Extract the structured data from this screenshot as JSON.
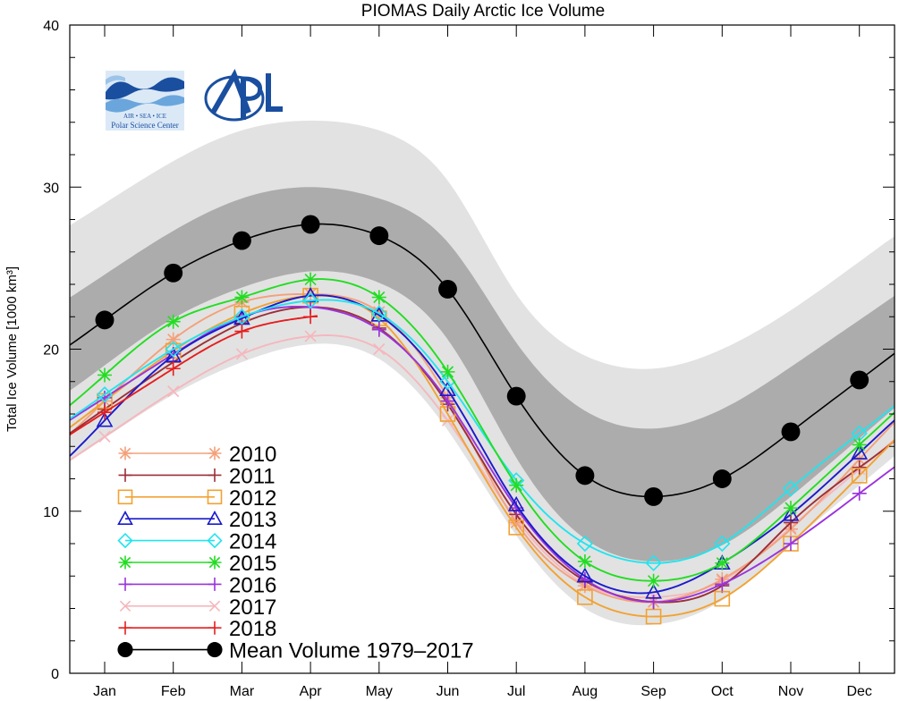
{
  "chart_data": {
    "type": "line",
    "title": "PIOMAS Daily Arctic Ice Volume",
    "xlabel": "",
    "ylabel": "Total Ice Volume [1000 km³]",
    "ylim": [
      0,
      40
    ],
    "yticks": [
      0,
      10,
      20,
      30,
      40
    ],
    "categories": [
      "Jan",
      "Feb",
      "Mar",
      "Apr",
      "May",
      "Jun",
      "Jul",
      "Aug",
      "Sep",
      "Oct",
      "Nov",
      "Dec"
    ],
    "x": [
      0,
      1,
      2,
      3,
      4,
      5,
      6,
      7,
      8,
      9,
      10,
      11
    ],
    "bands": {
      "outer": {
        "upper": [
          29.0,
          31.6,
          33.5,
          34.1,
          33.5,
          30.4,
          23.4,
          19.6,
          18.8,
          20.0,
          22.4,
          25.4
        ],
        "lower": [
          14.5,
          17.2,
          19.2,
          20.3,
          19.4,
          15.0,
          8.5,
          4.0,
          3.0,
          4.5,
          8.0,
          11.6
        ]
      },
      "inner": {
        "upper": [
          24.6,
          27.3,
          29.3,
          30.0,
          29.3,
          26.6,
          20.4,
          16.2,
          15.1,
          16.3,
          18.9,
          21.8
        ],
        "lower": [
          19.0,
          21.9,
          23.8,
          24.8,
          24.1,
          20.6,
          13.3,
          8.3,
          6.9,
          7.9,
          10.9,
          14.5
        ]
      }
    },
    "series": [
      {
        "name": "2010",
        "color": "#f4a07a",
        "marker": "asterisk",
        "values": [
          16.8,
          20.6,
          22.9,
          23.4,
          22.3,
          17.0,
          9.3,
          5.4,
          4.4,
          5.8,
          8.9,
          13.2
        ]
      },
      {
        "name": "2011",
        "color": "#9c2f38",
        "marker": "plus",
        "values": [
          16.3,
          19.2,
          21.6,
          22.6,
          21.3,
          16.6,
          9.8,
          5.7,
          4.4,
          5.4,
          9.3,
          12.7
        ]
      },
      {
        "name": "2012",
        "color": "#f2a233",
        "marker": "square",
        "values": [
          16.8,
          19.9,
          22.2,
          23.3,
          21.9,
          16.0,
          9.0,
          4.7,
          3.5,
          4.6,
          8.0,
          12.2
        ]
      },
      {
        "name": "2013",
        "color": "#1a1acc",
        "marker": "triangle",
        "values": [
          15.6,
          19.6,
          21.9,
          23.3,
          22.1,
          17.5,
          10.4,
          6.0,
          5.0,
          6.8,
          9.8,
          13.6
        ]
      },
      {
        "name": "2014",
        "color": "#22e4ee",
        "marker": "diamond",
        "values": [
          17.2,
          20.0,
          22.0,
          23.0,
          22.2,
          18.0,
          11.9,
          8.0,
          6.8,
          8.0,
          11.4,
          14.8
        ]
      },
      {
        "name": "2015",
        "color": "#22dd22",
        "marker": "asterisk",
        "values": [
          18.4,
          21.7,
          23.2,
          24.3,
          23.2,
          18.6,
          11.6,
          6.9,
          5.7,
          6.8,
          10.2,
          14.1
        ]
      },
      {
        "name": "2016",
        "color": "#9a33dd",
        "marker": "plus",
        "values": [
          17.0,
          19.7,
          22.0,
          22.6,
          21.2,
          16.8,
          10.2,
          5.8,
          4.4,
          5.5,
          8.0,
          11.1
        ]
      },
      {
        "name": "2017",
        "color": "#f5b7bd",
        "marker": "x",
        "values": [
          14.6,
          17.4,
          19.7,
          20.8,
          20.0,
          15.6,
          9.5,
          5.5,
          4.7,
          5.7,
          9.0,
          12.6
        ]
      },
      {
        "name": "2018",
        "color": "#e61e1e",
        "marker": "plus",
        "values": [
          16.1,
          18.8,
          21.1,
          22.0,
          null,
          null,
          null,
          null,
          null,
          null,
          null,
          null
        ]
      },
      {
        "name": "Mean Volume 1979–2017",
        "color": "#000000",
        "marker": "circle",
        "values": [
          21.8,
          24.7,
          26.7,
          27.7,
          27.0,
          23.7,
          17.1,
          12.2,
          10.9,
          12.0,
          14.9,
          18.1
        ]
      }
    ],
    "legend_position": "bottom-left",
    "grid": false
  },
  "logos": {
    "psc": {
      "name": "polar-science-center-logo",
      "caption_top": "AIR  •  SEA  •  ICE",
      "caption_bottom": "Polar Science Center"
    },
    "apl": {
      "name": "apl-logo",
      "text": "APL"
    }
  },
  "colors": {
    "outer_band": "#e2e2e2",
    "inner_band": "#acacac",
    "logo_blue": "#1a4fa0"
  }
}
